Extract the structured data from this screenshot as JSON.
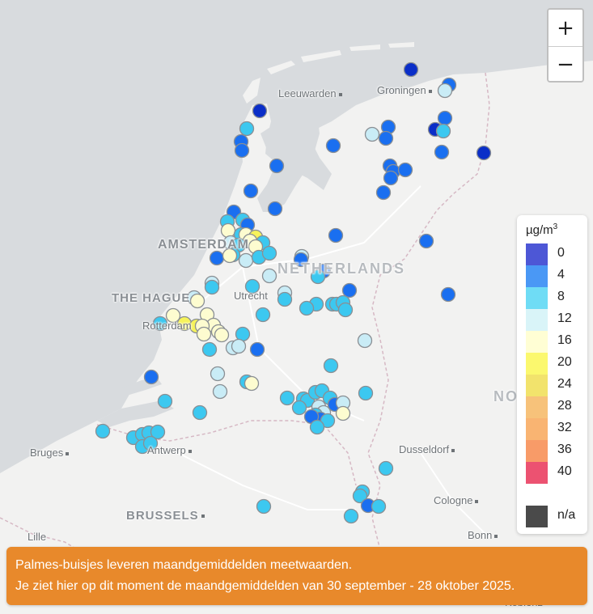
{
  "places": [
    {
      "name": "Leeuwarden",
      "type": "city"
    },
    {
      "name": "Groningen",
      "type": "city"
    },
    {
      "name": "AMSTERDAM",
      "type": "big"
    },
    {
      "name": "NETHERLANDS",
      "type": "country"
    },
    {
      "name": "THE HAGUE",
      "type": "big"
    },
    {
      "name": "Utrecht",
      "type": "city"
    },
    {
      "name": "Rotterdam",
      "type": "city"
    },
    {
      "name": "Bruges",
      "type": "city"
    },
    {
      "name": "Antwerp",
      "type": "city"
    },
    {
      "name": "Dusseldorf",
      "type": "city"
    },
    {
      "name": "Cologne",
      "type": "city"
    },
    {
      "name": "BRUSSELS",
      "type": "big"
    },
    {
      "name": "Bonn",
      "type": "city"
    },
    {
      "name": "Lille",
      "type": "city"
    },
    {
      "name": "NORTH RHINE-WESTPHALIA",
      "type": "country"
    },
    {
      "name": "Koblenz",
      "type": "city"
    }
  ],
  "zoom": {
    "in_label": "+",
    "out_label": "−"
  },
  "legend": {
    "unit": "µg/m",
    "unit_sup": "3",
    "bins": [
      {
        "label": "0",
        "color": "#4d57d6"
      },
      {
        "label": "4",
        "color": "#4a98f5"
      },
      {
        "label": "8",
        "color": "#6fdcf5"
      },
      {
        "label": "12",
        "color": "#d9f4f8"
      },
      {
        "label": "16",
        "color": "#fffed4"
      },
      {
        "label": "20",
        "color": "#fbf86e"
      },
      {
        "label": "24",
        "color": "#f2e36c"
      },
      {
        "label": "28",
        "color": "#f7c27a"
      },
      {
        "label": "32",
        "color": "#f9b472"
      },
      {
        "label": "36",
        "color": "#f89b68"
      },
      {
        "label": "40",
        "color": "#ec5271"
      }
    ],
    "na_label": "n/a",
    "na_color": "#4a4a4a"
  },
  "banner": {
    "line1": "Palmes-buisjes leveren maandgemiddelden meetwaarden.",
    "line2": "Je ziet hier op dit moment de maandgemiddelden van 30 september - 28 oktober 2025."
  },
  "marker_colors": {
    "c0": "#0a2ec8",
    "c1": "#1a6ff0",
    "c2": "#3cc8f0",
    "c3": "#c9ecf6",
    "c4": "#fdfcd0",
    "c5": "#f6f35a"
  }
}
